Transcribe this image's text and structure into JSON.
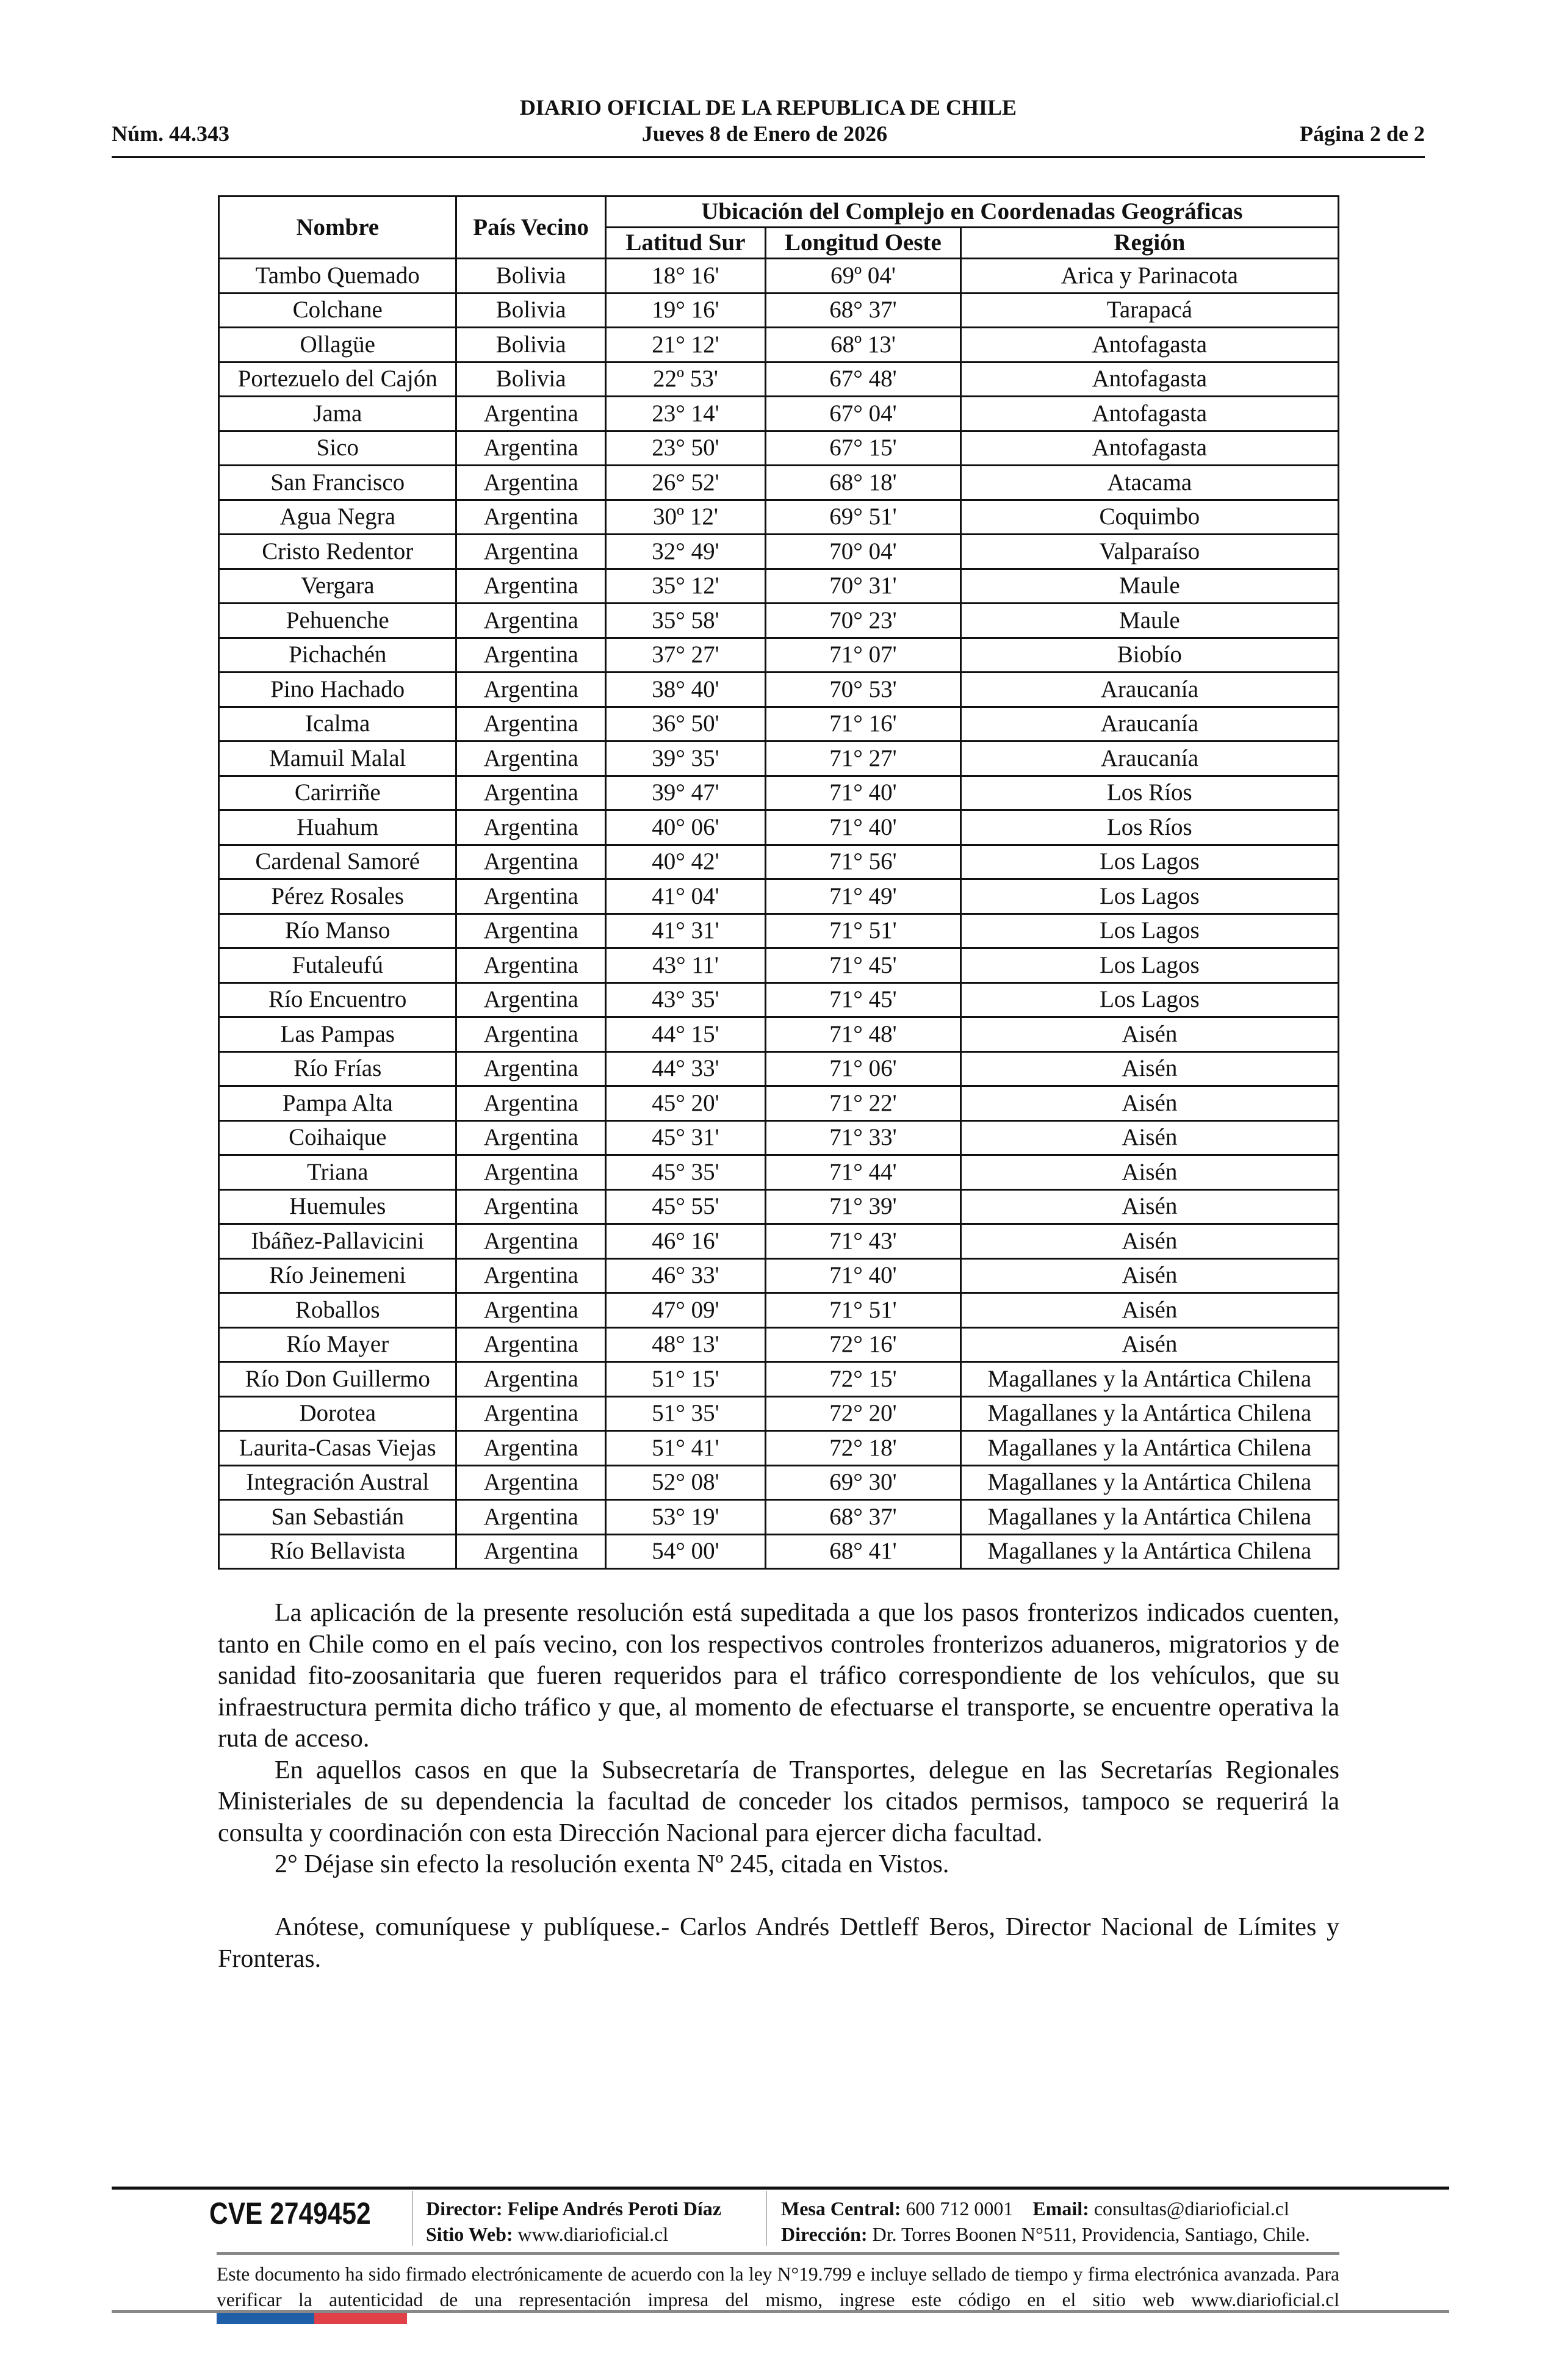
{
  "header": {
    "title": "DIARIO OFICIAL DE LA REPUBLICA DE CHILE",
    "number": "Núm. 44.343",
    "date": "Jueves 8 de Enero de 2026",
    "page": "Página 2 de 2"
  },
  "table": {
    "headers": {
      "nombre": "Nombre",
      "pais": "País Vecino",
      "group": "Ubicación del Complejo en Coordenadas Geográficas",
      "lat": "Latitud Sur",
      "lon": "Longitud Oeste",
      "region": "Región"
    },
    "rows": [
      [
        "Tambo Quemado",
        "Bolivia",
        "18° 16'",
        "69º 04'",
        "Arica y Parinacota"
      ],
      [
        "Colchane",
        "Bolivia",
        "19° 16'",
        "68° 37'",
        "Tarapacá"
      ],
      [
        "Ollagüe",
        "Bolivia",
        "21° 12'",
        "68º 13'",
        "Antofagasta"
      ],
      [
        "Portezuelo del Cajón",
        "Bolivia",
        "22º 53'",
        "67° 48'",
        "Antofagasta"
      ],
      [
        "Jama",
        "Argentina",
        "23° 14'",
        "67° 04'",
        "Antofagasta"
      ],
      [
        "Sico",
        "Argentina",
        "23° 50'",
        "67° 15'",
        "Antofagasta"
      ],
      [
        "San Francisco",
        "Argentina",
        "26° 52'",
        "68° 18'",
        "Atacama"
      ],
      [
        "Agua Negra",
        "Argentina",
        "30º 12'",
        "69° 51'",
        "Coquimbo"
      ],
      [
        "Cristo Redentor",
        "Argentina",
        "32° 49'",
        "70° 04'",
        "Valparaíso"
      ],
      [
        "Vergara",
        "Argentina",
        "35° 12'",
        "70° 31'",
        "Maule"
      ],
      [
        "Pehuenche",
        "Argentina",
        "35° 58'",
        "70° 23'",
        "Maule"
      ],
      [
        "Pichachén",
        "Argentina",
        "37° 27'",
        "71° 07'",
        "Biobío"
      ],
      [
        "Pino Hachado",
        "Argentina",
        "38° 40'",
        "70° 53'",
        "Araucanía"
      ],
      [
        "Icalma",
        "Argentina",
        "36° 50'",
        "71° 16'",
        "Araucanía"
      ],
      [
        "Mamuil Malal",
        "Argentina",
        "39° 35'",
        "71° 27'",
        "Araucanía"
      ],
      [
        "Carirriñe",
        "Argentina",
        "39° 47'",
        "71° 40'",
        "Los Ríos"
      ],
      [
        "Huahum",
        "Argentina",
        "40° 06'",
        "71° 40'",
        "Los Ríos"
      ],
      [
        "Cardenal Samoré",
        "Argentina",
        "40° 42'",
        "71° 56'",
        "Los Lagos"
      ],
      [
        "Pérez Rosales",
        "Argentina",
        "41° 04'",
        "71° 49'",
        "Los Lagos"
      ],
      [
        "Río Manso",
        "Argentina",
        "41° 31'",
        "71° 51'",
        "Los Lagos"
      ],
      [
        "Futaleufú",
        "Argentina",
        "43° 11'",
        "71° 45'",
        "Los Lagos"
      ],
      [
        "Río Encuentro",
        "Argentina",
        "43° 35'",
        "71° 45'",
        "Los Lagos"
      ],
      [
        "Las Pampas",
        "Argentina",
        "44° 15'",
        "71° 48'",
        "Aisén"
      ],
      [
        "Río Frías",
        "Argentina",
        "44° 33'",
        "71° 06'",
        "Aisén"
      ],
      [
        "Pampa Alta",
        "Argentina",
        "45° 20'",
        "71° 22'",
        "Aisén"
      ],
      [
        "Coihaique",
        "Argentina",
        "45° 31'",
        "71° 33'",
        "Aisén"
      ],
      [
        "Triana",
        "Argentina",
        "45° 35'",
        "71° 44'",
        "Aisén"
      ],
      [
        "Huemules",
        "Argentina",
        "45° 55'",
        "71° 39'",
        "Aisén"
      ],
      [
        "Ibáñez-Pallavicini",
        "Argentina",
        "46° 16'",
        "71° 43'",
        "Aisén"
      ],
      [
        "Río Jeinemeni",
        "Argentina",
        "46° 33'",
        "71° 40'",
        "Aisén"
      ],
      [
        "Roballos",
        "Argentina",
        "47° 09'",
        "71° 51'",
        "Aisén"
      ],
      [
        "Río Mayer",
        "Argentina",
        "48° 13'",
        "72° 16'",
        "Aisén"
      ],
      [
        "Río Don Guillermo",
        "Argentina",
        "51° 15'",
        "72° 15'",
        "Magallanes y la Antártica Chilena"
      ],
      [
        "Dorotea",
        "Argentina",
        "51° 35'",
        "72° 20'",
        "Magallanes y la Antártica Chilena"
      ],
      [
        "Laurita-Casas Viejas",
        "Argentina",
        "51° 41'",
        "72° 18'",
        "Magallanes y la Antártica Chilena"
      ],
      [
        "Integración Austral",
        "Argentina",
        "52° 08'",
        "69° 30'",
        "Magallanes y la Antártica Chilena"
      ],
      [
        "San Sebastián",
        "Argentina",
        "53° 19'",
        "68° 37'",
        "Magallanes y la Antártica Chilena"
      ],
      [
        "Río Bellavista",
        "Argentina",
        "54° 00'",
        "68° 41'",
        "Magallanes y la Antártica Chilena"
      ]
    ]
  },
  "body": {
    "paragraphs": [
      "La aplicación de la presente resolución está supeditada a que los pasos fronterizos indicados cuenten, tanto en Chile como en el país vecino, con los respectivos controles fronterizos aduaneros, migratorios y de sanidad fito-zoosanitaria que fueren requeridos para el tráfico correspondiente de los vehículos, que su infraestructura permita dicho tráfico y que, al momento de efectuarse el transporte, se encuentre operativa la ruta de acceso.",
      "En aquellos casos en que la Subsecretaría de Transportes, delegue en las Secretarías Regionales Ministeriales de su dependencia la facultad de conceder los citados permisos, tampoco se requerirá la consulta y coordinación con esta Dirección Nacional para ejercer dicha facultad.",
      "2° Déjase sin efecto la resolución exenta Nº 245, citada en Vistos.",
      "Anótese, comuníquese y publíquese.- Carlos Andrés Dettleff Beros, Director Nacional de Límites y Fronteras."
    ]
  },
  "footer": {
    "cve": "CVE 2749452",
    "director_label": "Director:",
    "director": "Felipe Andrés Peroti Díaz",
    "web_label": "Sitio Web:",
    "web": "www.diarioficial.cl",
    "mesa_label": "Mesa Central:",
    "mesa": "600 712 0001",
    "email_label": "Email:",
    "email": "consultas@diarioficial.cl",
    "dir_label": "Dirección:",
    "direccion": "Dr. Torres Boonen N°511, Providencia, Santiago, Chile.",
    "note": "Este documento ha sido firmado electrónicamente de acuerdo con la ley N°19.799 e incluye sellado de tiempo y firma electrónica avanzada. Para verificar la autenticidad de una representación impresa del mismo, ingrese este código en el sitio web www.diarioficial.cl",
    "flag_colors": [
      "#1f5fa8",
      "#e04048"
    ]
  }
}
